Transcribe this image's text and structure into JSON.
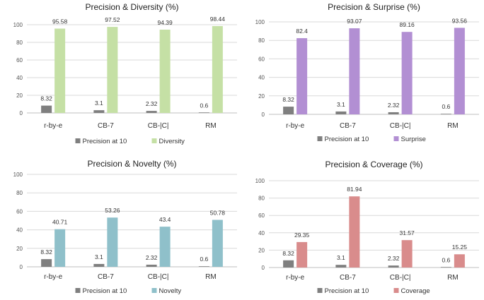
{
  "chart_data": [
    {
      "type": "bar",
      "title": "Precision & Diversity (%)",
      "categories": [
        "r-by-e",
        "CB-7",
        "CB-|C|",
        "RM"
      ],
      "ylim": [
        0,
        100
      ],
      "yticks": [
        0,
        20,
        40,
        60,
        80,
        100
      ],
      "grid": true,
      "legend": "bottom",
      "series": [
        {
          "name": "Precision at 10",
          "values": [
            8.32,
            3.1,
            2.32,
            0.6
          ],
          "labels": [
            "8.32",
            "3.1",
            "2.32",
            "0.6"
          ],
          "color": "#7f7f7f"
        },
        {
          "name": "Diversity",
          "values": [
            95.58,
            97.52,
            94.39,
            98.44
          ],
          "labels": [
            "95.58",
            "97.52",
            "94.39",
            "98.44"
          ],
          "color": "#c5e0a5"
        }
      ]
    },
    {
      "type": "bar",
      "title": "Precision & Surprise (%)",
      "categories": [
        "r-by-e",
        "CB-7",
        "CB-|C|",
        "RM"
      ],
      "ylim": [
        0,
        100
      ],
      "yticks": [
        0,
        20,
        40,
        60,
        80,
        100
      ],
      "grid": true,
      "legend": "bottom",
      "series": [
        {
          "name": "Precision at 10",
          "values": [
            8.32,
            3.1,
            2.32,
            0.6
          ],
          "labels": [
            "8.32",
            "3.1",
            "2.32",
            "0.6"
          ],
          "color": "#7f7f7f"
        },
        {
          "name": "Surprise",
          "values": [
            82.4,
            93.07,
            89.16,
            93.56
          ],
          "labels": [
            "82.4",
            "93.07",
            "89.16",
            "93.56"
          ],
          "color": "#b28fd3"
        }
      ]
    },
    {
      "type": "bar",
      "title": "Precision & Novelty (%)",
      "categories": [
        "r-by-e",
        "CB-7",
        "CB-|C|",
        "RM"
      ],
      "ylim": [
        0,
        100
      ],
      "yticks": [
        0,
        20,
        40,
        60,
        80,
        100
      ],
      "grid": true,
      "legend": "bottom",
      "series": [
        {
          "name": "Precision at 10",
          "values": [
            8.32,
            3.1,
            2.32,
            0.6
          ],
          "labels": [
            "8.32",
            "3.1",
            "2.32",
            "0.6"
          ],
          "color": "#7f7f7f"
        },
        {
          "name": "Novelty",
          "values": [
            40.71,
            53.26,
            43.4,
            50.78
          ],
          "labels": [
            "40.71",
            "53.26",
            "43.4",
            "50.78"
          ],
          "color": "#8fc0ca"
        }
      ]
    },
    {
      "type": "bar",
      "title": "Precision & Coverage (%)",
      "categories": [
        "r-by-e",
        "CB-7",
        "CB-|C|",
        "RM"
      ],
      "ylim": [
        0,
        100
      ],
      "yticks": [
        0,
        20,
        40,
        60,
        80,
        100
      ],
      "grid": true,
      "legend": "bottom",
      "series": [
        {
          "name": "Precision at 10",
          "values": [
            8.32,
            3.1,
            2.32,
            0.6
          ],
          "labels": [
            "8.32",
            "3.1",
            "2.32",
            "0.6"
          ],
          "color": "#7f7f7f"
        },
        {
          "name": "Coverage",
          "values": [
            29.35,
            81.94,
            31.57,
            15.25
          ],
          "labels": [
            "29.35",
            "81.94",
            "31.57",
            "15.25"
          ],
          "color": "#d98c8c"
        }
      ]
    }
  ]
}
